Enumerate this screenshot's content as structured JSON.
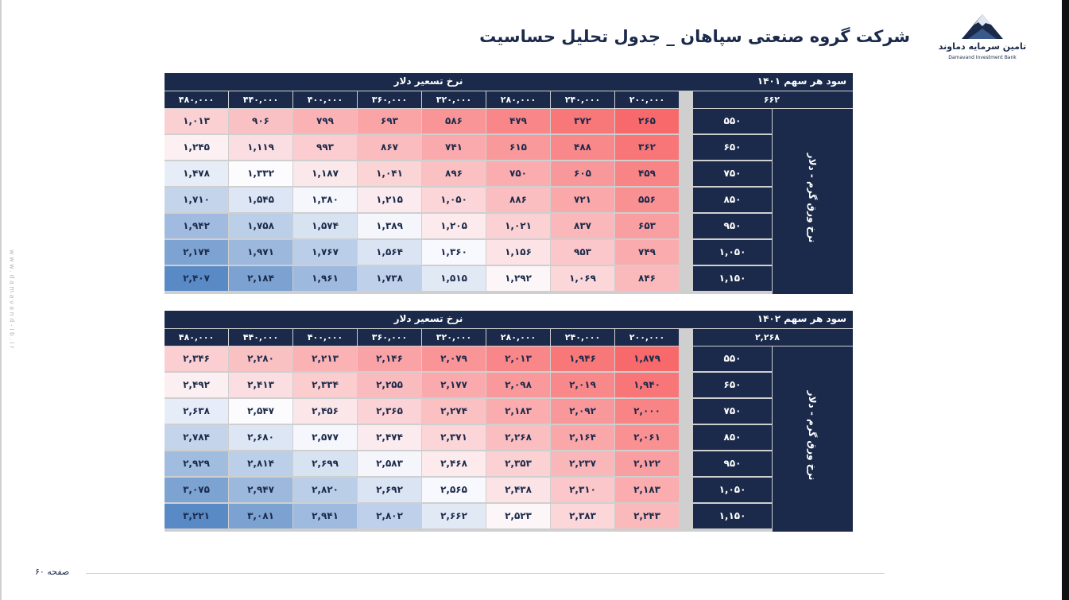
{
  "page": {
    "title": "شرکت گروه صنعتی سپاهان _ جدول تحلیل حساسیت",
    "page_number": "صفحه ۶۰",
    "side_url": "www.damavand-ib.ir"
  },
  "logo": {
    "name_fa": "تامین سرمایه دماوند",
    "name_en": "Damavand Investment Bank"
  },
  "tables": [
    {
      "eps_label": "سود هر سهم ۱۴۰۱",
      "eps_value": "۶۶۲",
      "col_axis_label": "نرخ تسعیر دلار",
      "row_axis_label": "نرخ ورق گرم - دلار",
      "columns": [
        "۲۰۰,۰۰۰",
        "۲۴۰,۰۰۰",
        "۲۸۰,۰۰۰",
        "۳۲۰,۰۰۰",
        "۳۶۰,۰۰۰",
        "۴۰۰,۰۰۰",
        "۴۴۰,۰۰۰",
        "۴۸۰,۰۰۰"
      ],
      "rows": [
        "۵۵۰",
        "۶۵۰",
        "۷۵۰",
        "۸۵۰",
        "۹۵۰",
        "۱,۰۵۰",
        "۱,۱۵۰"
      ],
      "values": [
        [
          "۲۶۵",
          "۳۷۲",
          "۴۷۹",
          "۵۸۶",
          "۶۹۳",
          "۷۹۹",
          "۹۰۶",
          "۱,۰۱۳"
        ],
        [
          "۳۶۲",
          "۴۸۸",
          "۶۱۵",
          "۷۴۱",
          "۸۶۷",
          "۹۹۳",
          "۱,۱۱۹",
          "۱,۲۴۵"
        ],
        [
          "۴۵۹",
          "۶۰۵",
          "۷۵۰",
          "۸۹۶",
          "۱,۰۴۱",
          "۱,۱۸۷",
          "۱,۳۳۲",
          "۱,۴۷۸"
        ],
        [
          "۵۵۶",
          "۷۲۱",
          "۸۸۶",
          "۱,۰۵۰",
          "۱,۲۱۵",
          "۱,۳۸۰",
          "۱,۵۴۵",
          "۱,۷۱۰"
        ],
        [
          "۶۵۳",
          "۸۳۷",
          "۱,۰۲۱",
          "۱,۲۰۵",
          "۱,۳۸۹",
          "۱,۵۷۴",
          "۱,۷۵۸",
          "۱,۹۴۲"
        ],
        [
          "۷۴۹",
          "۹۵۳",
          "۱,۱۵۶",
          "۱,۳۶۰",
          "۱,۵۶۴",
          "۱,۷۶۷",
          "۱,۹۷۱",
          "۲,۱۷۴"
        ],
        [
          "۸۴۶",
          "۱,۰۶۹",
          "۱,۲۹۲",
          "۱,۵۱۵",
          "۱,۷۳۸",
          "۱,۹۶۱",
          "۲,۱۸۴",
          "۲,۴۰۷"
        ]
      ]
    },
    {
      "eps_label": "سود هر سهم ۱۴۰۲",
      "eps_value": "۲,۲۶۸",
      "col_axis_label": "نرخ تسعیر دلار",
      "row_axis_label": "نرخ ورق گرم - دلار",
      "columns": [
        "۲۰۰,۰۰۰",
        "۲۴۰,۰۰۰",
        "۲۸۰,۰۰۰",
        "۳۲۰,۰۰۰",
        "۳۶۰,۰۰۰",
        "۴۰۰,۰۰۰",
        "۴۴۰,۰۰۰",
        "۴۸۰,۰۰۰"
      ],
      "rows": [
        "۵۵۰",
        "۶۵۰",
        "۷۵۰",
        "۸۵۰",
        "۹۵۰",
        "۱,۰۵۰",
        "۱,۱۵۰"
      ],
      "values": [
        [
          "۱,۸۷۹",
          "۱,۹۴۶",
          "۲,۰۱۳",
          "۲,۰۷۹",
          "۲,۱۴۶",
          "۲,۲۱۳",
          "۲,۲۸۰",
          "۲,۳۴۶"
        ],
        [
          "۱,۹۴۰",
          "۲,۰۱۹",
          "۲,۰۹۸",
          "۲,۱۷۷",
          "۲,۲۵۵",
          "۲,۳۳۴",
          "۲,۴۱۳",
          "۲,۴۹۲"
        ],
        [
          "۲,۰۰۰",
          "۲,۰۹۲",
          "۲,۱۸۳",
          "۲,۲۷۴",
          "۲,۳۶۵",
          "۲,۴۵۶",
          "۲,۵۴۷",
          "۲,۶۳۸"
        ],
        [
          "۲,۰۶۱",
          "۲,۱۶۴",
          "۲,۲۶۸",
          "۲,۳۷۱",
          "۲,۴۷۴",
          "۲,۵۷۷",
          "۲,۶۸۰",
          "۲,۷۸۴"
        ],
        [
          "۲,۱۲۲",
          "۲,۲۳۷",
          "۲,۳۵۳",
          "۲,۴۶۸",
          "۲,۵۸۳",
          "۲,۶۹۹",
          "۲,۸۱۴",
          "۲,۹۲۹"
        ],
        [
          "۲,۱۸۳",
          "۲,۳۱۰",
          "۲,۴۳۸",
          "۲,۵۶۵",
          "۲,۶۹۲",
          "۲,۸۲۰",
          "۲,۹۴۷",
          "۳,۰۷۵"
        ],
        [
          "۲,۲۴۳",
          "۲,۳۸۳",
          "۲,۵۲۳",
          "۲,۶۶۲",
          "۲,۸۰۲",
          "۲,۹۴۱",
          "۳,۰۸۱",
          "۳,۲۲۱"
        ]
      ]
    }
  ],
  "colors": {
    "navy": "#1b2a4a",
    "heat_low": "#f8696b",
    "heat_mid": "#fcfcff",
    "heat_high": "#5a8ac6"
  }
}
